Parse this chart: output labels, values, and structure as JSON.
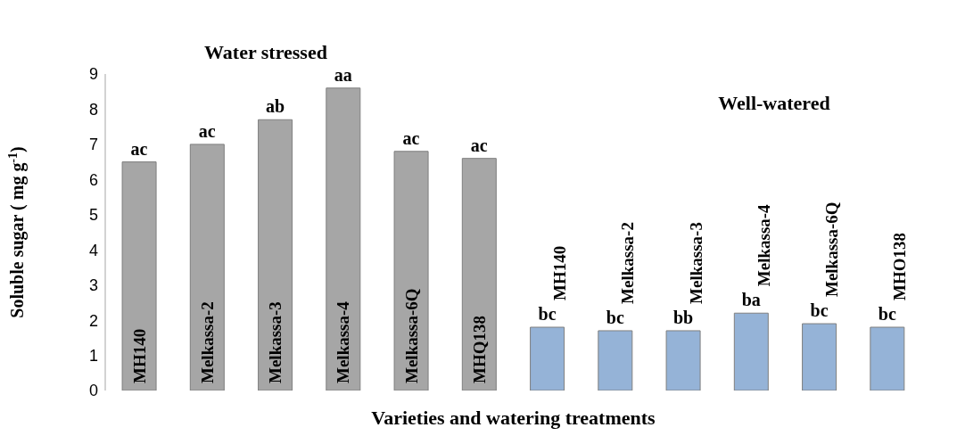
{
  "chart_data": {
    "type": "bar",
    "xlabel": "Varieties and watering treatments",
    "ylabel": "Soluble sugar ( mg g$^{-1}$)",
    "categories": [
      "MH140",
      "Melkassa-2",
      "Melkassa-3",
      "Melkassa-4",
      "Melkassa-6Q",
      "MHQ138",
      "MH140",
      "Melkassa-2",
      "Melkassa-3",
      "Melkassa-4",
      "Melkassa-6Q",
      "MHO138"
    ],
    "values": [
      6.5,
      7.0,
      7.7,
      8.6,
      6.8,
      6.6,
      1.8,
      1.7,
      1.7,
      2.2,
      1.9,
      1.8
    ],
    "colors": [
      "#a6a6a6",
      "#a6a6a6",
      "#a6a6a6",
      "#a6a6a6",
      "#a6a6a6",
      "#a6a6a6",
      "#95b3d7",
      "#95b3d7",
      "#95b3d7",
      "#95b3d7",
      "#95b3d7",
      "#95b3d7"
    ],
    "value_labels": [
      "ac",
      "ac",
      "ab",
      "aa",
      "ac",
      "ac",
      "bc",
      "bc",
      "bb",
      "ba",
      "bc",
      "bc"
    ],
    "annotations": [
      "Water stressed",
      "Well-watered"
    ],
    "ylim": [
      0,
      9
    ],
    "yticks": [
      0,
      1,
      2,
      3,
      4,
      5,
      6,
      7,
      8,
      9
    ]
  }
}
